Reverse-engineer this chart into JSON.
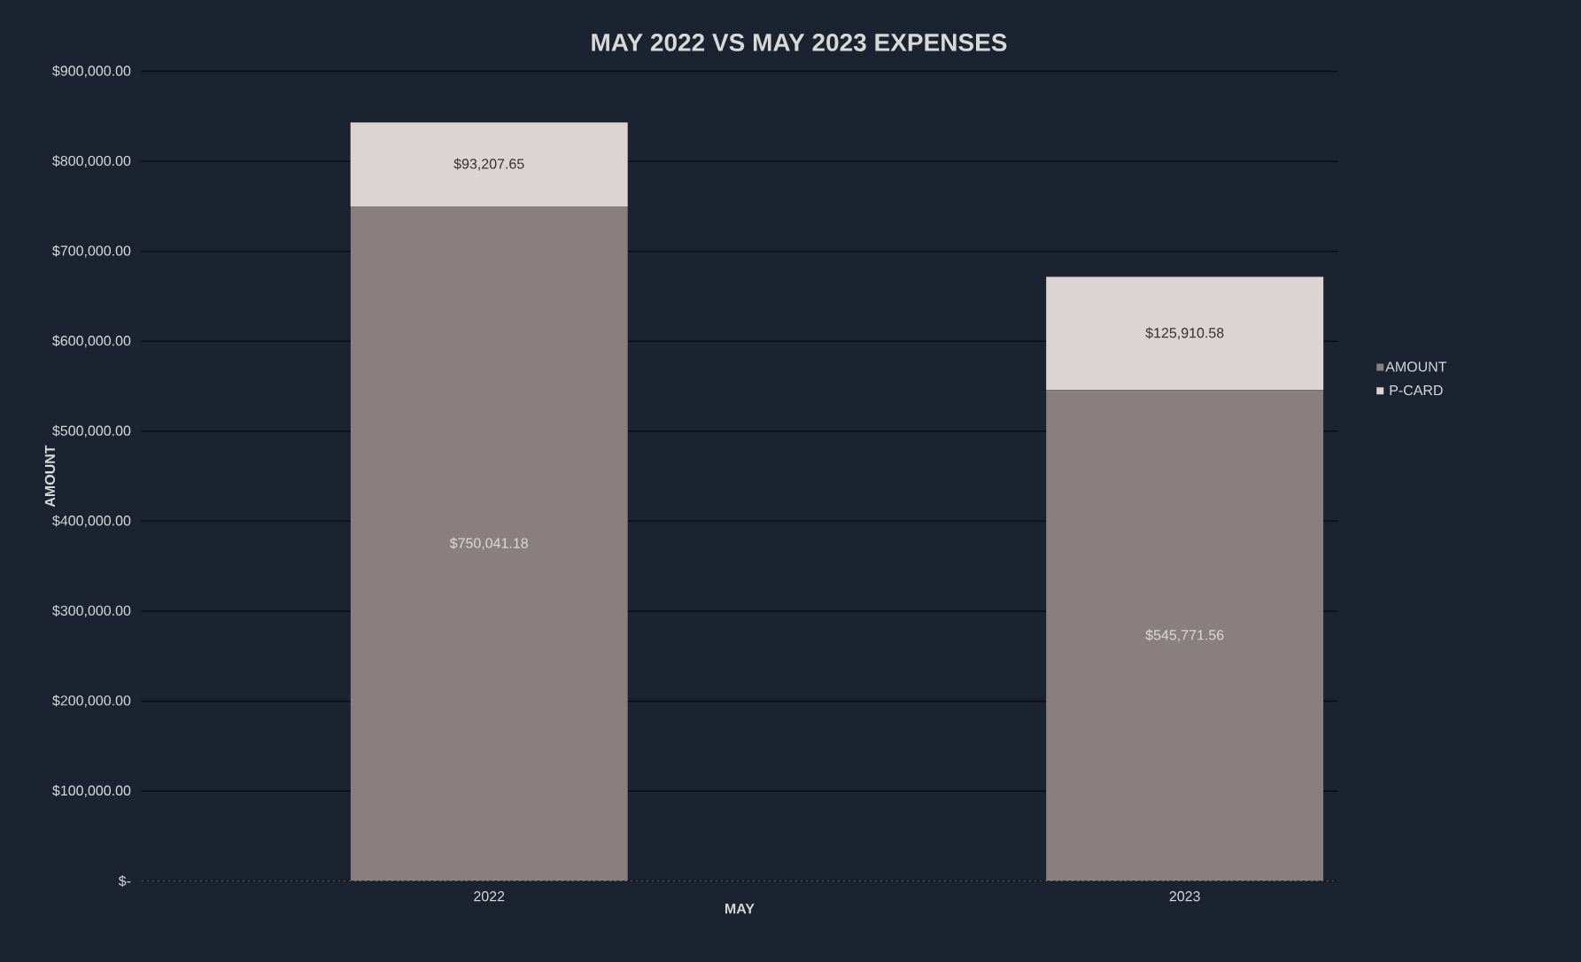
{
  "chart_data": {
    "type": "bar",
    "title": "MAY 2022 VS MAY 2023 EXPENSES",
    "xlabel": "MAY",
    "ylabel": "AMOUNT",
    "categories": [
      "2022",
      "2023"
    ],
    "stacked": true,
    "series": [
      {
        "name": "AMOUNT",
        "color": "#8a7f80",
        "values": [
          750041.18,
          545771.56
        ],
        "value_labels": [
          "$750,041.18",
          "$545,771.56"
        ]
      },
      {
        "name": "P-CARD",
        "color": "#dcd3d3",
        "values": [
          93207.65,
          125910.58
        ],
        "value_labels": [
          "$93,207.65",
          "$125,910.58"
        ]
      }
    ],
    "ylim": [
      0,
      900000
    ],
    "yticks": [
      {
        "value": 0,
        "label": "$-"
      },
      {
        "value": 100000,
        "label": "$100,000.00"
      },
      {
        "value": 200000,
        "label": "$200,000.00"
      },
      {
        "value": 300000,
        "label": "$300,000.00"
      },
      {
        "value": 400000,
        "label": "$400,000.00"
      },
      {
        "value": 500000,
        "label": "$500,000.00"
      },
      {
        "value": 600000,
        "label": "$600,000.00"
      },
      {
        "value": 700000,
        "label": "$700,000.00"
      },
      {
        "value": 800000,
        "label": "$800,000.00"
      },
      {
        "value": 900000,
        "label": "$900,000.00"
      }
    ],
    "grid": "y",
    "legend": "right"
  }
}
